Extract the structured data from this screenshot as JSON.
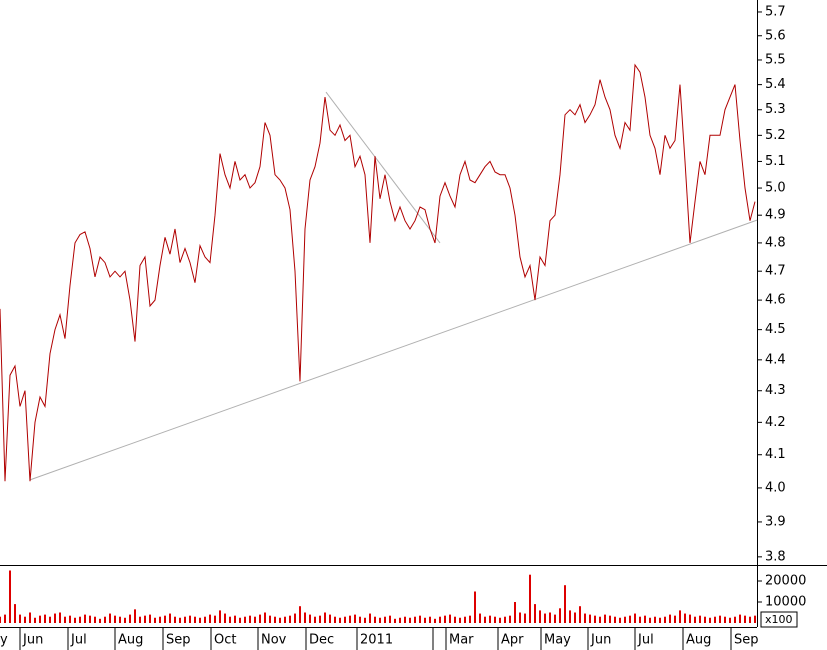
{
  "chart_data": {
    "type": "line",
    "log_y": true,
    "xlim": [
      0,
      151.4
    ],
    "ylim": [
      3.777,
      5.751
    ],
    "yticks": [
      3.8,
      3.9,
      {
        "value": 4,
        "label": "4.0"
      },
      4.1,
      4.2,
      4.3,
      4.4,
      4.5,
      4.6,
      4.7,
      4.8,
      4.9,
      {
        "value": 5,
        "label": "5.0"
      },
      5.1,
      5.2,
      5.3,
      5.4,
      5.5,
      5.6,
      5.7
    ],
    "xticks": [
      {
        "value": -0.6,
        "label": "y"
      },
      {
        "value": 4,
        "label": "Jun"
      },
      {
        "value": 13.6,
        "label": "Jul"
      },
      {
        "value": 23,
        "label": "Aug"
      },
      {
        "value": 32.6,
        "label": "Sep"
      },
      {
        "value": 42.2,
        "label": "Oct"
      },
      {
        "value": 51.6,
        "label": "Nov"
      },
      {
        "value": 61.2,
        "label": "Dec"
      },
      {
        "value": 71.4,
        "label": "2011"
      },
      {
        "value": 86.6,
        "label": null
      },
      {
        "value": 89.2,
        "label": "Mar"
      },
      {
        "value": 99.6,
        "label": "Apr"
      },
      {
        "value": 108.2,
        "label": "May"
      },
      {
        "value": 117.6,
        "label": "Jun"
      },
      {
        "value": 127,
        "label": "Jul"
      },
      {
        "value": 136.6,
        "label": "Aug"
      },
      {
        "value": 146.2,
        "label": "Sep"
      }
    ],
    "y2lim": [
      0,
      26667
    ],
    "y2ticks": [
      10000,
      20000
    ],
    "y2_unit": "x100",
    "series": [
      {
        "color": "#b00000",
        "values": [
          4.57,
          4.02,
          4.35,
          4.38,
          4.25,
          4.3,
          4.02,
          4.2,
          4.28,
          4.25,
          4.42,
          4.5,
          4.55,
          4.47,
          4.65,
          4.8,
          4.83,
          4.84,
          4.78,
          4.68,
          4.75,
          4.73,
          4.68,
          4.7,
          4.68,
          4.7,
          4.6,
          4.46,
          4.72,
          4.75,
          4.58,
          4.6,
          4.72,
          4.82,
          4.76,
          4.85,
          4.73,
          4.78,
          4.73,
          4.66,
          4.79,
          4.75,
          4.73,
          4.9,
          5.13,
          5.05,
          5.0,
          5.1,
          5.03,
          5.05,
          5.0,
          5.02,
          5.08,
          5.25,
          5.2,
          5.05,
          5.03,
          5.0,
          4.92,
          4.7,
          4.33,
          4.85,
          5.03,
          5.08,
          5.17,
          5.35,
          5.22,
          5.2,
          5.24,
          5.18,
          5.2,
          5.08,
          5.12,
          5.05,
          4.8,
          5.12,
          4.96,
          5.05,
          4.95,
          4.88,
          4.93,
          4.88,
          4.85,
          4.88,
          4.93,
          4.92,
          4.85,
          4.8,
          4.97,
          5.02,
          4.97,
          4.93,
          5.05,
          5.1,
          5.03,
          5.02,
          5.05,
          5.08,
          5.1,
          5.06,
          5.05,
          5.05,
          5.0,
          4.9,
          4.75,
          4.68,
          4.72,
          4.6,
          4.75,
          4.72,
          4.88,
          4.9,
          5.05,
          5.28,
          5.3,
          5.28,
          5.32,
          5.25,
          5.28,
          5.32,
          5.42,
          5.35,
          5.3,
          5.2,
          5.15,
          5.25,
          5.22,
          5.48,
          5.45,
          5.35,
          5.2,
          5.15,
          5.05,
          5.2,
          5.15,
          5.18,
          5.4,
          5.1,
          4.8,
          4.95,
          5.1,
          5.05,
          5.2,
          5.2,
          5.2,
          5.3,
          5.35,
          5.4,
          5.18,
          5.0,
          4.88,
          4.95
        ]
      },
      {
        "type": "bar",
        "axis": "y2",
        "color": "#dd0000",
        "values": [
          3000,
          4000,
          25000,
          9000,
          4000,
          3000,
          5000,
          2500,
          3500,
          4000,
          3000,
          4500,
          5000,
          3000,
          3500,
          2500,
          3000,
          4000,
          3500,
          3000,
          2000,
          3000,
          4500,
          3500,
          3000,
          2500,
          4000,
          6500,
          3000,
          3500,
          4000,
          2500,
          3000,
          3500,
          4500,
          3000,
          2500,
          3000,
          3500,
          3000,
          2500,
          3000,
          4000,
          3500,
          6000,
          4500,
          3000,
          3500,
          2500,
          3000,
          3500,
          3000,
          4000,
          5000,
          3500,
          3000,
          2500,
          3000,
          3500,
          4500,
          8000,
          5000,
          4000,
          3000,
          3500,
          5000,
          4000,
          3000,
          2500,
          3000,
          3500,
          4000,
          3000,
          2500,
          4500,
          3000,
          2500,
          3000,
          3500,
          2000,
          2500,
          3000,
          2500,
          3000,
          3500,
          2500,
          3000,
          2000,
          3000,
          3500,
          4000,
          3000,
          2500,
          3000,
          3500,
          15000,
          4500,
          3000,
          3500,
          3000,
          2500,
          3000,
          3500,
          10000,
          5000,
          4500,
          23000,
          9000,
          6000,
          4500,
          5000,
          4000,
          7000,
          18000,
          6000,
          5000,
          8000,
          4500,
          4000,
          3500,
          3000,
          4000,
          3500,
          3000,
          2500,
          3000,
          3500,
          4500,
          3000,
          3500,
          2500,
          3000,
          2500,
          3000,
          4000,
          3500,
          6000,
          4500,
          4000,
          3000,
          3500,
          3000,
          2500,
          3000,
          3500,
          3000,
          2500,
          3000,
          4000,
          3500,
          3000,
          3500
        ]
      }
    ],
    "trendlines": [
      {
        "x": [
          6,
          151.4
        ],
        "y": [
          4.024,
          4.882
        ]
      },
      {
        "x": [
          65.2,
          88
        ],
        "y": [
          5.37,
          4.8
        ]
      }
    ]
  }
}
